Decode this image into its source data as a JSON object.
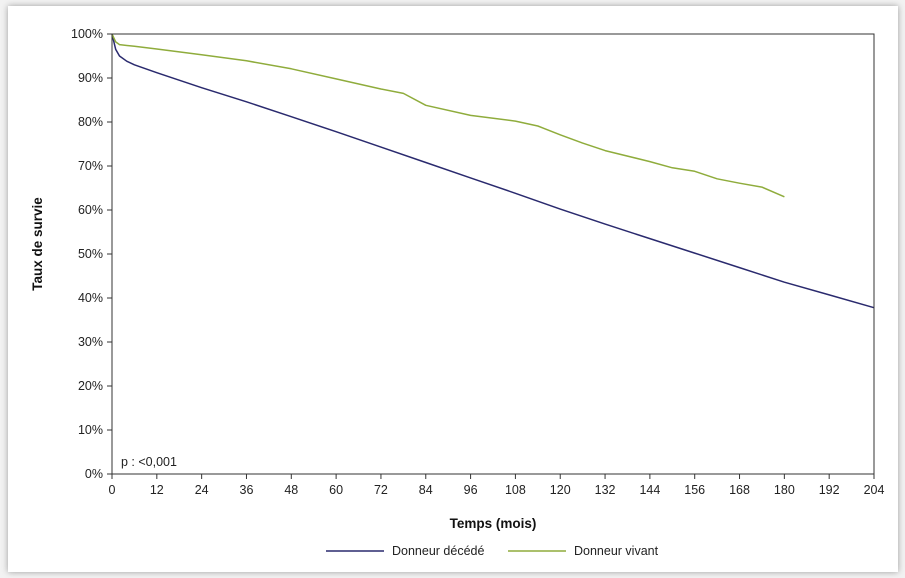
{
  "chart_data": {
    "type": "line",
    "title": "",
    "xlabel": "Temps (mois)",
    "ylabel": "Taux de survie",
    "xlim": [
      0,
      204
    ],
    "ylim": [
      0,
      100
    ],
    "x_ticks": [
      "0",
      "12",
      "24",
      "36",
      "48",
      "60",
      "72",
      "84",
      "96",
      "108",
      "120",
      "132",
      "144",
      "156",
      "168",
      "180",
      "192",
      "204"
    ],
    "y_ticks": [
      "0%",
      "10%",
      "20%",
      "30%",
      "40%",
      "50%",
      "60%",
      "70%",
      "80%",
      "90%",
      "100%"
    ],
    "annotation": "p : <0,001",
    "legend_position": "bottom",
    "grid": false,
    "series": [
      {
        "name": "Donneur décédé",
        "color": "#2a2a6e",
        "x": [
          0,
          1,
          2,
          4,
          6,
          12,
          24,
          36,
          48,
          60,
          72,
          84,
          96,
          108,
          120,
          132,
          144,
          156,
          168,
          180,
          192,
          204
        ],
        "y": [
          100,
          96.5,
          95,
          93.8,
          93,
          91.2,
          87.8,
          84.6,
          81.2,
          77.8,
          74.3,
          70.8,
          67.3,
          63.8,
          60.2,
          56.8,
          53.5,
          50.2,
          46.9,
          43.6,
          40.7,
          37.8
        ]
      },
      {
        "name": "Donneur vivant",
        "color": "#8fac3c",
        "x": [
          0,
          1,
          2,
          6,
          12,
          24,
          36,
          48,
          60,
          72,
          78,
          84,
          96,
          108,
          114,
          120,
          126,
          132,
          144,
          150,
          156,
          162,
          168,
          174,
          180
        ],
        "y": [
          100,
          98.2,
          97.6,
          97.2,
          96.6,
          95.3,
          93.9,
          92.1,
          89.8,
          87.5,
          86.5,
          83.8,
          81.5,
          80.2,
          79.1,
          77.1,
          75.2,
          73.5,
          71.0,
          69.6,
          68.8,
          67.1,
          66.1,
          65.2,
          63.0
        ]
      }
    ]
  }
}
